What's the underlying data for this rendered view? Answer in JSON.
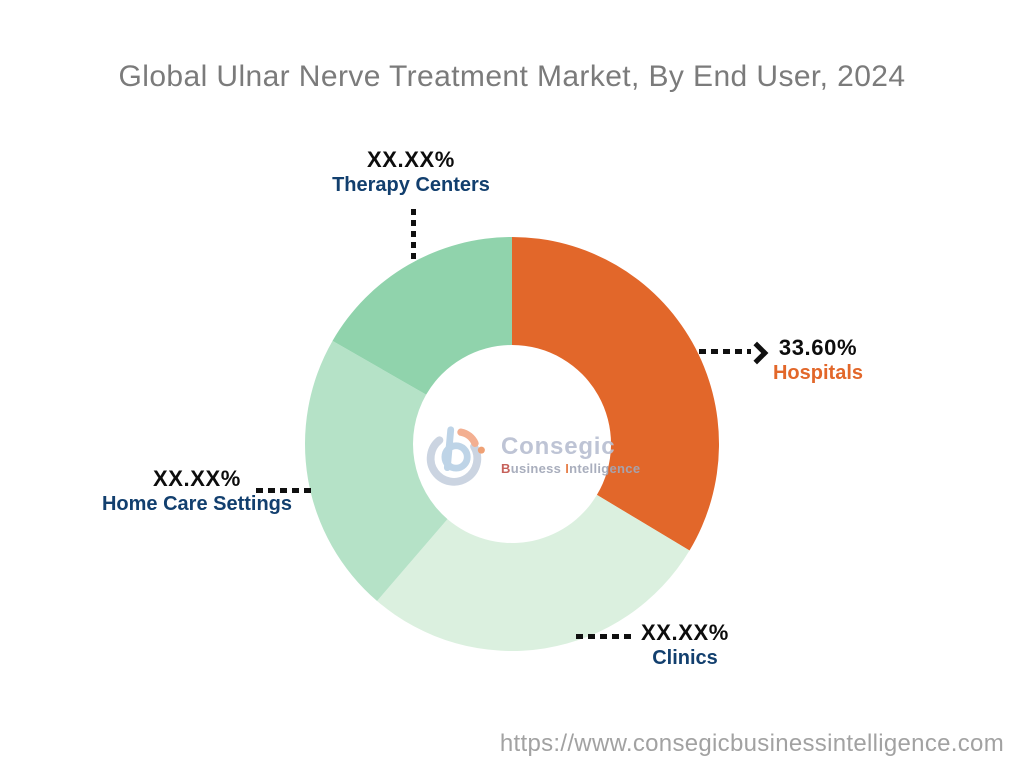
{
  "title": "Global Ulnar Nerve Treatment Market, By End User, 2024",
  "chart_data": {
    "type": "pie",
    "subtype": "donut",
    "title": "Global Ulnar Nerve Treatment Market, By End User, 2024",
    "start_angle_deg": 0,
    "direction": "clockwise",
    "inner_radius_ratio": 0.48,
    "segments": [
      {
        "label": "Hospitals",
        "display_value": "33.60%",
        "value": 33.6,
        "color": "#e2672a",
        "label_color": "#e2672a"
      },
      {
        "label": "Clinics",
        "display_value": "XX.XX%",
        "value": 27.7,
        "color": "#dbf0df",
        "label_color": "#123f6e"
      },
      {
        "label": "Home Care Settings",
        "display_value": "XX.XX%",
        "value": 22.0,
        "color": "#b5e2c7",
        "label_color": "#123f6e"
      },
      {
        "label": "Therapy Centers",
        "display_value": "XX.XX%",
        "value": 16.7,
        "color": "#90d3ac",
        "label_color": "#123f6e"
      }
    ]
  },
  "logo": {
    "name": "Consegic",
    "tagline": {
      "b": "B",
      "rest1": "usiness",
      "i": "I",
      "rest2": "ntelligence"
    }
  },
  "footer": {
    "url": "https://www.consegicbusinessintelligence.com"
  }
}
